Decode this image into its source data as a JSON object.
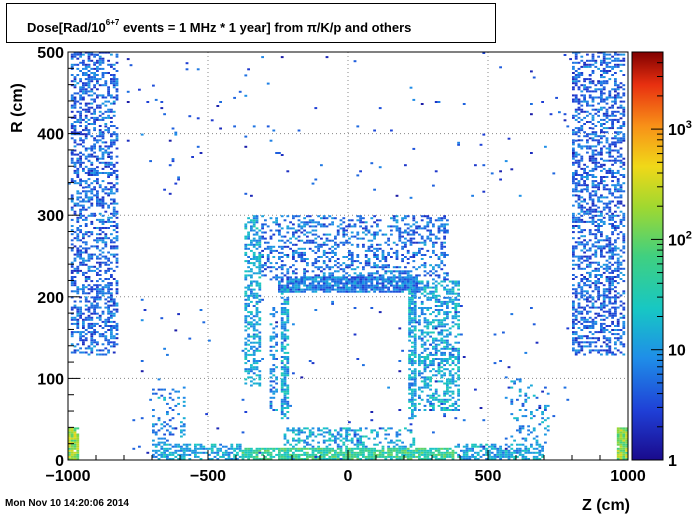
{
  "title": {
    "prefix": "Dose[Rad/10",
    "superscript": "6+7",
    "suffix": " events = 1 MHz * 1 year] from π/K/p and others"
  },
  "footer": {
    "timestamp": "Mon Nov 10 14:20:06 2014"
  },
  "chart_data": {
    "type": "heatmap",
    "title": "Dose[Rad/10^6+7 events = 1 MHz * 1 year] from π/K/p and others",
    "xlabel": "Z (cm)",
    "ylabel": "R (cm)",
    "xlim": [
      -1000,
      1000
    ],
    "ylim": [
      0,
      500
    ],
    "x_ticks": [
      -1000,
      -500,
      0,
      500,
      1000
    ],
    "x_tick_labels": [
      "−1000",
      "−500",
      "0",
      "500",
      "1000"
    ],
    "y_ticks": [
      0,
      100,
      200,
      300,
      400,
      500
    ],
    "y_tick_labels": [
      "0",
      "100",
      "200",
      "300",
      "400",
      "500"
    ],
    "grid": true,
    "colorbar": {
      "scale": "log",
      "range": [
        1,
        5000
      ],
      "ticks": [
        1,
        10,
        100,
        1000
      ],
      "tick_labels": [
        "1",
        "10",
        "10^2",
        "10^3"
      ]
    },
    "regions": [
      {
        "z": [
          -990,
          -820
        ],
        "r": [
          128,
          500
        ],
        "density": 0.45,
        "level": 0.18
      },
      {
        "z": [
          800,
          990
        ],
        "r": [
          128,
          500
        ],
        "density": 0.45,
        "level": 0.18
      },
      {
        "z": [
          -310,
          360
        ],
        "r": [
          220,
          300
        ],
        "density": 0.35,
        "level": 0.2
      },
      {
        "z": [
          -250,
          250
        ],
        "r": [
          205,
          225
        ],
        "density": 0.85,
        "level": 0.22
      },
      {
        "z": [
          -370,
          -310
        ],
        "r": [
          90,
          300
        ],
        "density": 0.5,
        "level": 0.3
      },
      {
        "z": [
          250,
          400
        ],
        "r": [
          60,
          220
        ],
        "density": 0.5,
        "level": 0.3
      },
      {
        "z": [
          -240,
          -215
        ],
        "r": [
          50,
          210
        ],
        "density": 0.7,
        "level": 0.3
      },
      {
        "z": [
          215,
          240
        ],
        "r": [
          50,
          210
        ],
        "density": 0.7,
        "level": 0.3
      },
      {
        "z": [
          -280,
          -250
        ],
        "r": [
          60,
          190
        ],
        "density": 0.4,
        "level": 0.25
      },
      {
        "z": [
          -700,
          -380
        ],
        "r": [
          0,
          20
        ],
        "density": 0.6,
        "level": 0.3
      },
      {
        "z": [
          380,
          700
        ],
        "r": [
          0,
          20
        ],
        "density": 0.6,
        "level": 0.3
      },
      {
        "z": [
          -380,
          380
        ],
        "r": [
          0,
          15
        ],
        "density": 0.8,
        "level": 0.45
      },
      {
        "z": [
          -230,
          60
        ],
        "r": [
          15,
          40
        ],
        "density": 0.4,
        "level": 0.3
      },
      {
        "z": [
          60,
          240
        ],
        "r": [
          15,
          40
        ],
        "density": 0.3,
        "level": 0.3
      },
      {
        "z": [
          -1000,
          -960
        ],
        "r": [
          0,
          40
        ],
        "density": 0.95,
        "level": 0.6
      },
      {
        "z": [
          960,
          1000
        ],
        "r": [
          0,
          40
        ],
        "density": 0.95,
        "level": 0.6
      },
      {
        "z": [
          -700,
          -580
        ],
        "r": [
          20,
          90
        ],
        "density": 0.2,
        "level": 0.25
      },
      {
        "z": [
          580,
          720
        ],
        "r": [
          20,
          100
        ],
        "density": 0.2,
        "level": 0.25
      },
      {
        "z": [
          -1000,
          1000
        ],
        "r": [
          320,
          500
        ],
        "density": 0.01,
        "level": 0.15
      },
      {
        "z": [
          -800,
          800
        ],
        "r": [
          0,
          200
        ],
        "density": 0.01,
        "level": 0.15
      }
    ]
  }
}
